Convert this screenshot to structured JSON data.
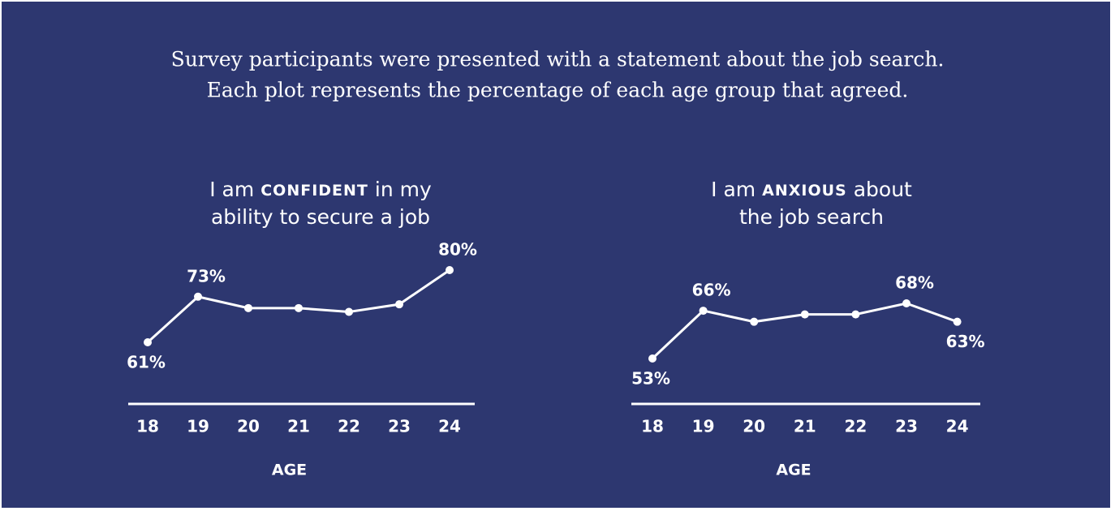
{
  "header": {
    "title": [
      "Survey participants were presented with a statement about the job search.",
      "Each plot represents the percentage of each age group that agreed."
    ]
  },
  "chart_data": [
    {
      "type": "line",
      "title": [
        [
          "I am",
          "CONFIDENT",
          "in my"
        ],
        [
          "ability to secure a job"
        ]
      ],
      "categories": [
        "18",
        "19",
        "20",
        "21",
        "22",
        "23",
        "24"
      ],
      "xlabel": "AGE",
      "color": "#ffffff",
      "values": [
        61,
        73,
        70,
        70,
        69,
        71,
        80
      ],
      "value_labels": [
        "61%",
        "73%",
        null,
        null,
        null,
        null,
        "80%"
      ]
    },
    {
      "type": "line",
      "title": [
        [
          "I am",
          "ANXIOUS",
          "about"
        ],
        [
          "the job search"
        ]
      ],
      "categories": [
        "18",
        "19",
        "20",
        "21",
        "22",
        "23",
        "24"
      ],
      "xlabel": "AGE",
      "color": "#ffffff",
      "values": [
        53,
        66,
        63,
        65,
        65,
        68,
        63
      ],
      "value_labels": [
        "53%",
        "66%",
        null,
        null,
        null,
        "68%",
        "63%"
      ]
    }
  ]
}
